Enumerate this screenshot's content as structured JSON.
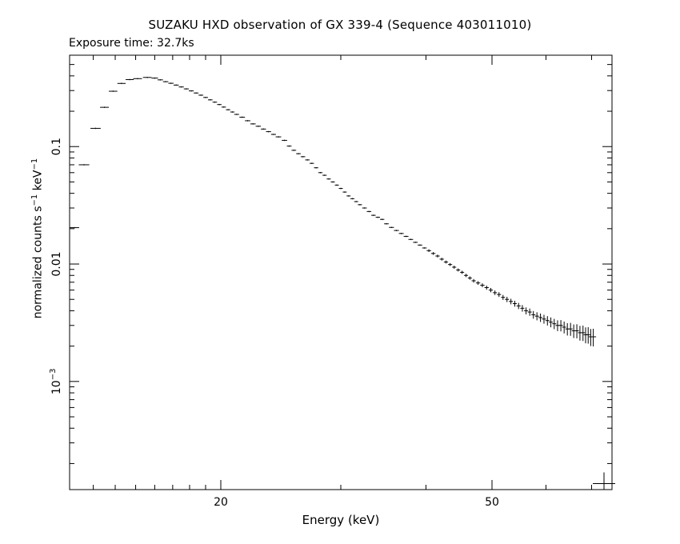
{
  "title": "SUZAKU HXD observation of GX 339-4 (Sequence 403011010)",
  "subtitle": "Exposure time: 32.7ks",
  "chart_data": {
    "type": "scatter",
    "title": "SUZAKU HXD observation of GX 339-4 (Sequence 403011010)",
    "xlabel": "Energy (keV)",
    "ylabel": {
      "text": "normalized counts s",
      "sup1": "−1",
      "mid": " keV",
      "sup2": "−1"
    },
    "xscale": "log",
    "yscale": "log",
    "xlim": [
      12,
      75
    ],
    "ylim": [
      0.00012,
      0.6
    ],
    "grid": false,
    "xticks_major": [
      {
        "value": 20,
        "label": "20"
      },
      {
        "value": 50,
        "label": "50"
      }
    ],
    "xticks_minor": [
      13,
      14,
      15,
      16,
      17,
      18,
      19,
      30,
      40,
      60,
      70
    ],
    "yticks_major": [
      {
        "value": 0.1,
        "label": "0.1",
        "sup": ""
      },
      {
        "value": 0.01,
        "label": "0.01",
        "sup": ""
      },
      {
        "value": 0.001,
        "label": "10",
        "sup": "−3"
      }
    ],
    "yticks_minor": [
      0.0002,
      0.0003,
      0.0004,
      0.0005,
      0.0006,
      0.0007,
      0.0008,
      0.0009,
      0.002,
      0.003,
      0.004,
      0.005,
      0.006,
      0.007,
      0.008,
      0.009,
      0.02,
      0.03,
      0.04,
      0.05,
      0.06,
      0.07,
      0.08,
      0.09,
      0.2,
      0.3,
      0.4,
      0.5
    ],
    "points": [
      [
        12.2,
        0.0204
      ],
      [
        12.6,
        0.07
      ],
      [
        13.1,
        0.143
      ],
      [
        13.5,
        0.216
      ],
      [
        13.9,
        0.296
      ],
      [
        14.3,
        0.345
      ],
      [
        14.7,
        0.372
      ],
      [
        15.1,
        0.379
      ],
      [
        15.6,
        0.388
      ],
      [
        16.0,
        0.383
      ],
      [
        16.3,
        0.37
      ],
      [
        16.6,
        0.357
      ],
      [
        16.9,
        0.346
      ],
      [
        17.2,
        0.334
      ],
      [
        17.5,
        0.322
      ],
      [
        17.8,
        0.31
      ],
      [
        18.1,
        0.298
      ],
      [
        18.4,
        0.286
      ],
      [
        18.7,
        0.274
      ],
      [
        19.0,
        0.262
      ],
      [
        19.3,
        0.25
      ],
      [
        19.6,
        0.239
      ],
      [
        19.9,
        0.228
      ],
      [
        20.2,
        0.217
      ],
      [
        20.5,
        0.206
      ],
      [
        20.8,
        0.197
      ],
      [
        21.1,
        0.188
      ],
      [
        21.5,
        0.178
      ],
      [
        21.9,
        0.166
      ],
      [
        22.3,
        0.156
      ],
      [
        22.7,
        0.149
      ],
      [
        23.1,
        0.141
      ],
      [
        23.5,
        0.134
      ],
      [
        23.9,
        0.127
      ],
      [
        24.3,
        0.121
      ],
      [
        24.8,
        0.113
      ],
      [
        25.2,
        0.101
      ],
      [
        25.6,
        0.093
      ],
      [
        26.0,
        0.087
      ],
      [
        26.4,
        0.082
      ],
      [
        26.8,
        0.077
      ],
      [
        27.2,
        0.072
      ],
      [
        27.6,
        0.066
      ],
      [
        28.0,
        0.06
      ],
      [
        28.4,
        0.057
      ],
      [
        28.8,
        0.053
      ],
      [
        29.2,
        0.05
      ],
      [
        29.6,
        0.047
      ],
      [
        30.0,
        0.044
      ],
      [
        30.4,
        0.041
      ],
      [
        30.8,
        0.038
      ],
      [
        31.2,
        0.036
      ],
      [
        31.6,
        0.034
      ],
      [
        32.0,
        0.032
      ],
      [
        32.5,
        0.03
      ],
      [
        33.0,
        0.028
      ],
      [
        33.5,
        0.026
      ],
      [
        34.0,
        0.025
      ],
      [
        34.5,
        0.024
      ],
      [
        35.0,
        0.022
      ],
      [
        35.6,
        0.0205
      ],
      [
        36.2,
        0.0193
      ],
      [
        36.8,
        0.0182
      ],
      [
        37.4,
        0.0172
      ],
      [
        38.0,
        0.0162
      ],
      [
        38.6,
        0.0153
      ],
      [
        39.2,
        0.0145
      ],
      [
        39.8,
        0.0137
      ],
      [
        40.4,
        0.013
      ],
      [
        41.0,
        0.0123
      ],
      [
        41.6,
        0.0117
      ],
      [
        42.2,
        0.011
      ],
      [
        42.8,
        0.0104
      ],
      [
        43.4,
        0.0099
      ],
      [
        44.0,
        0.0094
      ],
      [
        44.6,
        0.0089
      ],
      [
        45.2,
        0.0085
      ],
      [
        45.8,
        0.008
      ],
      [
        46.4,
        0.0076
      ],
      [
        47.0,
        0.0072
      ],
      [
        47.7,
        0.0069
      ],
      [
        48.4,
        0.0066
      ],
      [
        49.1,
        0.0063
      ],
      [
        49.8,
        0.006
      ],
      [
        50.5,
        0.0057
      ],
      [
        51.2,
        0.0055
      ],
      [
        51.9,
        0.0052
      ],
      [
        52.6,
        0.005
      ],
      [
        53.3,
        0.0048
      ],
      [
        54.0,
        0.0046
      ],
      [
        54.7,
        0.0044
      ],
      [
        55.4,
        0.0042
      ],
      [
        56.1,
        0.004
      ],
      [
        56.8,
        0.0039
      ],
      [
        57.5,
        0.0037
      ],
      [
        58.2,
        0.0036
      ],
      [
        58.9,
        0.0035
      ],
      [
        59.6,
        0.0034
      ],
      [
        60.3,
        0.0033
      ],
      [
        61.0,
        0.0032
      ],
      [
        61.7,
        0.0031
      ],
      [
        62.4,
        0.003
      ],
      [
        63.1,
        0.003
      ],
      [
        63.8,
        0.0029
      ],
      [
        64.5,
        0.0028
      ],
      [
        65.2,
        0.0028
      ],
      [
        65.9,
        0.0027
      ],
      [
        66.6,
        0.0027
      ],
      [
        67.3,
        0.0026
      ],
      [
        68.0,
        0.0026
      ],
      [
        68.6,
        0.0025
      ],
      [
        69.2,
        0.0025
      ],
      [
        69.8,
        0.0024
      ],
      [
        70.4,
        0.0024
      ]
    ],
    "last_point": [
      73.0,
      0.000135
    ]
  }
}
